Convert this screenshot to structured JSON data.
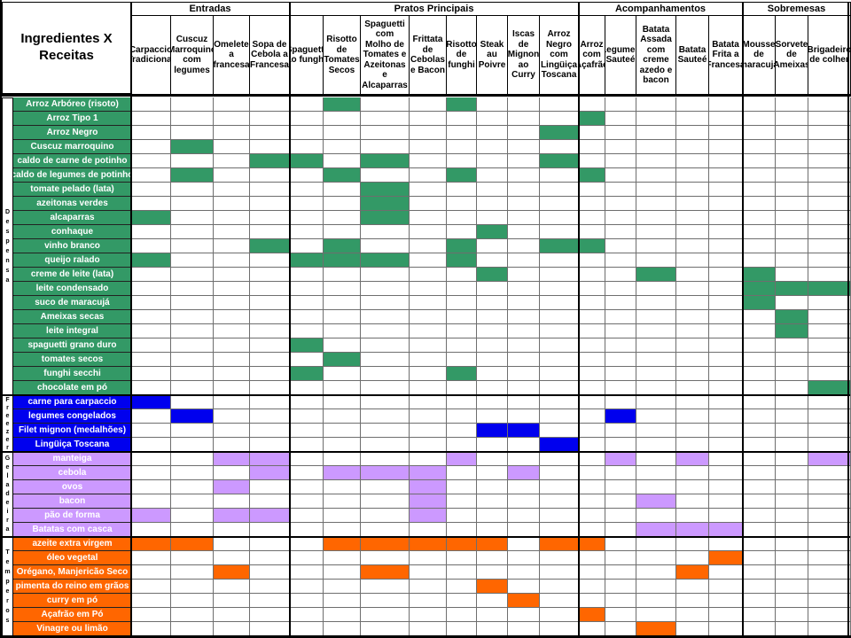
{
  "chart_data": {
    "type": "table",
    "title": "Ingredientes X Receitas",
    "column_groups": [
      {
        "label": "Entradas",
        "span": 4
      },
      {
        "label": "Pratos Principais",
        "span": 8
      },
      {
        "label": "Acompanhamentos",
        "span": 5
      },
      {
        "label": "Sobremesas",
        "span": 3
      }
    ],
    "columns": [
      "Carpaccio Tradicional",
      "Cuscuz Marroquino com legumes",
      "Omelete a francesa",
      "Sopa de Cebola a Francesa",
      "Spaguetti ao funghi",
      "Risotto de Tomates Secos",
      "Spaguetti com Molho de Tomates e Azeitonas e Alcaparras",
      "Frittata de Cebolas e Bacon",
      "Risotto de funghi",
      "Steak au Poivre",
      "Iscas de Mignon ao Curry",
      "Arroz Negro com Lingüiça Toscana",
      "Arroz com Açafrão",
      "Legumes Sauteé",
      "Batata Assada com creme azedo e bacon",
      "Batata Sauteé",
      "Batata Frita a Francesa",
      "Mousse de maracujá",
      "Sorvete de Ameixas",
      "Brigadeiro de colher"
    ],
    "row_sections": [
      {
        "name": "Despensa",
        "color": "#339966",
        "rows": [
          {
            "label": "Arroz Arbóreo (risoto)",
            "marks": [
              6,
              9
            ]
          },
          {
            "label": "Arroz Tipo 1",
            "marks": [
              13
            ]
          },
          {
            "label": "Arroz Negro",
            "marks": [
              12
            ]
          },
          {
            "label": "Cuscuz marroquino",
            "marks": [
              2
            ]
          },
          {
            "label": "caldo de carne de potinho",
            "marks": [
              4,
              5,
              7,
              12
            ]
          },
          {
            "label": "caldo de legumes de potinho",
            "marks": [
              2,
              6,
              9,
              13
            ]
          },
          {
            "label": "tomate pelado (lata)",
            "marks": [
              7
            ]
          },
          {
            "label": "azeitonas verdes",
            "marks": [
              7
            ]
          },
          {
            "label": "alcaparras",
            "marks": [
              1,
              7
            ]
          },
          {
            "label": "conhaque",
            "marks": [
              10
            ]
          },
          {
            "label": "vinho branco",
            "marks": [
              4,
              6,
              9,
              12,
              13
            ]
          },
          {
            "label": "queijo ralado",
            "marks": [
              1,
              5,
              6,
              7,
              9
            ]
          },
          {
            "label": "creme de leite (lata)",
            "marks": [
              10,
              15,
              18
            ]
          },
          {
            "label": "leite condensado",
            "marks": [
              18,
              19,
              20
            ]
          },
          {
            "label": "suco de maracujá",
            "marks": [
              18
            ]
          },
          {
            "label": "Ameixas secas",
            "marks": [
              19
            ]
          },
          {
            "label": "leite integral",
            "marks": [
              19
            ]
          },
          {
            "label": "spaguetti grano duro",
            "marks": [
              5
            ]
          },
          {
            "label": "tomates secos",
            "marks": [
              6
            ]
          },
          {
            "label": "funghi secchi",
            "marks": [
              5,
              9
            ]
          },
          {
            "label": "chocolate em pó",
            "marks": [
              20
            ]
          }
        ]
      },
      {
        "name": "Freezer",
        "color": "#0000EE",
        "rows": [
          {
            "label": "carne para carpaccio",
            "marks": [
              1
            ]
          },
          {
            "label": "legumes congelados",
            "marks": [
              2,
              14
            ]
          },
          {
            "label": "Filet mignon (medalhões)",
            "marks": [
              10,
              11
            ]
          },
          {
            "label": "Lingüiça Toscana",
            "marks": [
              12
            ]
          }
        ]
      },
      {
        "name": "Geladeira",
        "color": "#CC99FF",
        "rows": [
          {
            "label": "manteiga",
            "marks": [
              3,
              4,
              9,
              14,
              16,
              20
            ]
          },
          {
            "label": "cebola",
            "marks": [
              4,
              6,
              7,
              8,
              11
            ]
          },
          {
            "label": "ovos",
            "marks": [
              3,
              8
            ]
          },
          {
            "label": "bacon",
            "marks": [
              8,
              15
            ]
          },
          {
            "label": "pão de forma",
            "marks": [
              1,
              3,
              4,
              8
            ]
          },
          {
            "label": "Batatas com casca",
            "marks": [
              15,
              16,
              17
            ]
          }
        ]
      },
      {
        "name": "Temperos",
        "color": "#FF6600",
        "rows": [
          {
            "label": "azeite extra virgem",
            "marks": [
              1,
              2,
              6,
              7,
              8,
              9,
              10,
              12,
              13
            ]
          },
          {
            "label": "óleo vegetal",
            "marks": [
              17
            ]
          },
          {
            "label": "Orégano, Manjericão Seco",
            "marks": [
              3,
              7,
              16
            ]
          },
          {
            "label": "pimenta do reino em grãos",
            "marks": [
              10
            ]
          },
          {
            "label": "curry em pó",
            "marks": [
              11
            ]
          },
          {
            "label": "Açafrão em Pó",
            "marks": [
              13
            ]
          },
          {
            "label": "Vinagre ou limão",
            "marks": [
              15
            ]
          }
        ]
      }
    ],
    "colors": {
      "grid": "#6e6e6e",
      "border": "#000000",
      "background": "#ffffff",
      "row_label_text": "#ffffff",
      "header_text": "#000000"
    }
  }
}
